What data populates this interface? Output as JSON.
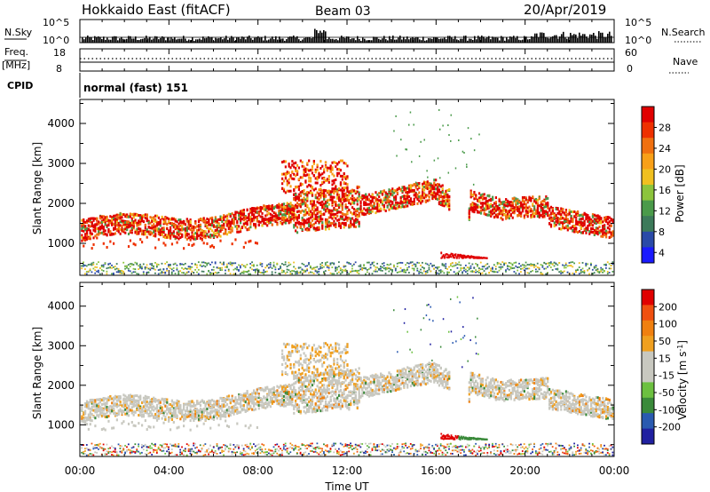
{
  "header": {
    "title": "Hokkaido East (fitACF)",
    "beam": "Beam 03",
    "date": "20/Apr/2019"
  },
  "status_panels": {
    "nsky_label": "N.Sky",
    "nsky_ticks": [
      "10^5",
      "10^0"
    ],
    "nsearch_label": "N.Search",
    "nsearch_ticks": [
      "10^5",
      "10^0"
    ],
    "freq_label": "Freq.",
    "freq_unit": "[MHz]",
    "freq_ticks": [
      "18",
      "8"
    ],
    "nave_label": "Nave",
    "nave_ticks": [
      "60",
      "0"
    ],
    "cpid_label": "CPID",
    "cpid_value": "normal (fast) 151"
  },
  "chart_data": [
    {
      "type": "heatmap",
      "name": "power",
      "ylabel": "Slant Range [km]",
      "yticks": [
        "1000",
        "2000",
        "3000",
        "4000"
      ],
      "ylim": [
        200,
        4600
      ],
      "xlim": [
        0,
        24
      ],
      "colorbar": {
        "label": "Power [dB]",
        "ticks": [
          "4",
          "8",
          "12",
          "16",
          "20",
          "24",
          "28"
        ],
        "colors": [
          "#1a1aff",
          "#2a4aa8",
          "#3c7a5a",
          "#4a9a4a",
          "#8cc43c",
          "#f0c020",
          "#f8a018",
          "#f07010",
          "#ee3000",
          "#e00000"
        ]
      }
    },
    {
      "type": "heatmap",
      "name": "velocity",
      "ylabel": "Slant Range [km]",
      "yticks": [
        "1000",
        "2000",
        "3000",
        "4000"
      ],
      "ylim": [
        200,
        4600
      ],
      "xlim": [
        0,
        24
      ],
      "colorbar": {
        "label": "Velocity [m s",
        "label_sup": "-1",
        "label_end": "]",
        "ticks": [
          "200",
          "100",
          "50",
          "15",
          "-15",
          "-50",
          "-100",
          "-200"
        ],
        "colors": [
          "#2020a0",
          "#2a5ab0",
          "#3a8a3a",
          "#6cc040",
          "#c8c8c0",
          "#c8c8c0",
          "#f0a020",
          "#f08010",
          "#f05010",
          "#e00000"
        ]
      }
    }
  ],
  "xaxis": {
    "ticks": [
      "00:00",
      "04:00",
      "08:00",
      "12:00",
      "16:00",
      "20:00",
      "00:00"
    ],
    "label": "Time UT"
  }
}
